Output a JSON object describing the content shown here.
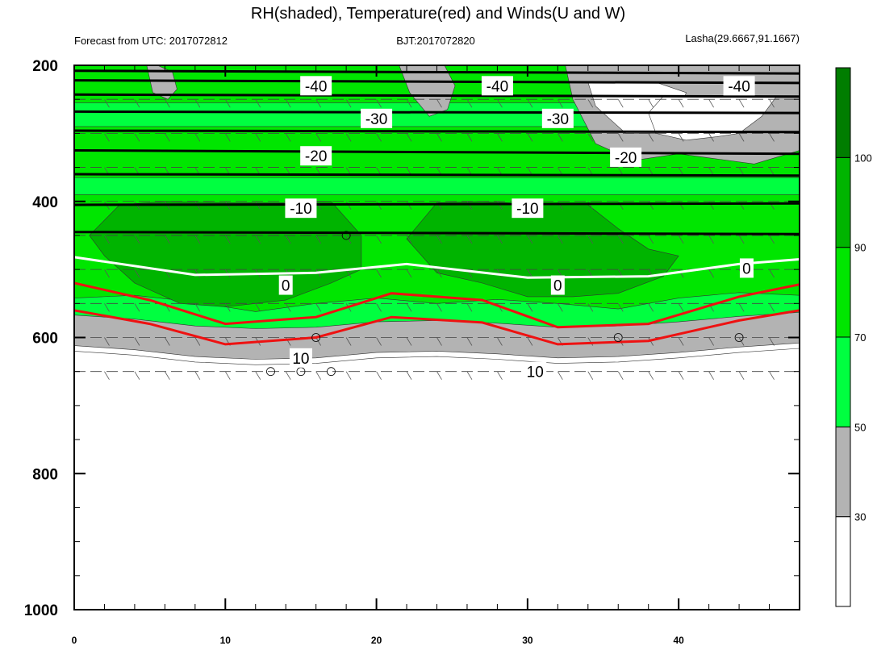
{
  "chart_data": {
    "type": "heatmap",
    "title": "RH(shaded), Temperature(red) and Winds(U and W)",
    "subtitle_left": "Forecast from UTC: 2017072812",
    "subtitle_center": "BJT:2017072820",
    "subtitle_right": "Lasha(29.6667,91.1667)",
    "xlabel": "",
    "ylabel": "",
    "x_range": [
      0,
      48
    ],
    "y_range": [
      200,
      1000
    ],
    "y_reversed": true,
    "x_ticks": [
      "0",
      "10",
      "20",
      "30",
      "40"
    ],
    "x_tick_values": [
      0,
      10,
      20,
      30,
      40
    ],
    "y_ticks": [
      "200",
      "400",
      "600",
      "800",
      "1000"
    ],
    "y_tick_values": [
      200,
      400,
      600,
      800,
      1000
    ],
    "colorbar": {
      "levels": [
        "30",
        "50",
        "70",
        "90",
        "100"
      ],
      "level_values": [
        30,
        50,
        70,
        90,
        100
      ],
      "colors": [
        "#ffffff",
        "#b3b3b3",
        "#00ff40",
        "#00e600",
        "#00b400",
        "#007d00"
      ]
    },
    "rh_layers": [
      {
        "name": "below 30",
        "range": [
          0,
          30
        ],
        "color": "#ffffff"
      },
      {
        "name": "30-50",
        "range": [
          30,
          50
        ],
        "color": "#b3b3b3"
      },
      {
        "name": "50-70",
        "range": [
          50,
          70
        ],
        "color": "#00ff40"
      },
      {
        "name": "70-90",
        "range": [
          70,
          90
        ],
        "color": "#00e600"
      },
      {
        "name": "90-100",
        "range": [
          90,
          100
        ],
        "color": "#00b400"
      }
    ],
    "rh_ground_boundary": {
      "x": [
        0,
        4,
        8,
        12,
        16,
        20,
        24,
        28,
        32,
        36,
        40,
        44,
        48
      ],
      "y": [
        612,
        618,
        628,
        632,
        630,
        622,
        620,
        624,
        630,
        628,
        622,
        614,
        608
      ]
    },
    "rh_moist_regions": [
      {
        "level": "90-100",
        "x": [
          1,
          3,
          6,
          10,
          14,
          17,
          19,
          19,
          17,
          14,
          12,
          10,
          7,
          4,
          2,
          1
        ],
        "y": [
          450,
          405,
          400,
          402,
          402,
          400,
          450,
          500,
          520,
          545,
          550,
          555,
          550,
          520,
          480,
          450
        ]
      },
      {
        "level": "90-100",
        "x": [
          22,
          24,
          27,
          31,
          34,
          36,
          38,
          40,
          39,
          36,
          33,
          30,
          27,
          24,
          22
        ],
        "y": [
          455,
          402,
          400,
          405,
          405,
          440,
          470,
          480,
          510,
          535,
          540,
          540,
          520,
          505,
          455
        ]
      }
    ],
    "rh_dry_regions": [
      {
        "level": "30-50",
        "x": [
          4.8,
          5.5,
          6.5,
          6.8,
          6.2,
          5.2,
          4.8
        ],
        "y": [
          200,
          200,
          210,
          235,
          250,
          240,
          200
        ]
      },
      {
        "level": "30-50",
        "x": [
          21.5,
          24.5,
          25.2,
          24.7,
          23.5,
          22.2,
          21.5
        ],
        "y": [
          200,
          200,
          230,
          265,
          275,
          240,
          200
        ]
      },
      {
        "level": "30-50",
        "x": [
          32.5,
          48,
          48,
          45,
          40,
          37,
          34.5,
          33,
          32.5
        ],
        "y": [
          200,
          200,
          325,
          345,
          330,
          340,
          315,
          250,
          200
        ]
      },
      {
        "level": "below 30",
        "x": [
          34,
          38.5,
          40.5,
          40,
          38.5,
          36.5,
          34.5,
          34
        ],
        "y": [
          225,
          225,
          240,
          270,
          300,
          300,
          260,
          225
        ]
      },
      {
        "level": "below 30",
        "x": [
          39,
          46.5,
          45.5,
          44,
          42.5,
          40.5,
          38.5,
          38,
          39
        ],
        "y": [
          245,
          245,
          275,
          300,
          305,
          310,
          300,
          270,
          245
        ]
      }
    ],
    "temperature_isotherms": [
      {
        "value": -40,
        "label": "-40",
        "x": [
          0,
          48
        ],
        "y": [
          208,
          212
        ]
      },
      {
        "value": -40,
        "label": "",
        "x": [
          0,
          48
        ],
        "y": [
          222,
          226
        ]
      },
      {
        "value": -40,
        "label": "",
        "x": [
          0,
          48
        ],
        "y": [
          243,
          246
        ]
      },
      {
        "value": -30,
        "label": "-30",
        "x": [
          0,
          48
        ],
        "y": [
          268,
          270
        ]
      },
      {
        "value": -30,
        "label": "",
        "x": [
          0,
          48
        ],
        "y": [
          296,
          298
        ]
      },
      {
        "value": -20,
        "label": "-20",
        "x": [
          0,
          48
        ],
        "y": [
          325,
          330
        ]
      },
      {
        "value": -20,
        "label": "",
        "x": [
          0,
          48
        ],
        "y": [
          360,
          362
        ]
      },
      {
        "value": -10,
        "label": "-10",
        "x": [
          0,
          48
        ],
        "y": [
          405,
          403
        ]
      },
      {
        "value": -10,
        "label": "",
        "x": [
          0,
          48
        ],
        "y": [
          445,
          448
        ]
      },
      {
        "value": 0,
        "label": "0",
        "x": [
          0,
          8,
          16,
          22,
          30,
          38,
          44,
          48
        ],
        "y": [
          482,
          508,
          505,
          492,
          512,
          510,
          492,
          485
        ]
      },
      {
        "value": 10,
        "label": "10",
        "x": [
          0,
          5,
          10,
          16,
          21,
          27,
          32,
          38,
          44,
          48
        ],
        "y": [
          520,
          545,
          580,
          570,
          535,
          545,
          585,
          580,
          540,
          522
        ]
      }
    ],
    "contour_labels": [
      {
        "text": "-40",
        "x": 16,
        "y": 230
      },
      {
        "text": "-40",
        "x": 28,
        "y": 230
      },
      {
        "text": "-40",
        "x": 44,
        "y": 230
      },
      {
        "text": "-30",
        "x": 20,
        "y": 278
      },
      {
        "text": "-30",
        "x": 32,
        "y": 278
      },
      {
        "text": "-20",
        "x": 16,
        "y": 333
      },
      {
        "text": "-20",
        "x": 36.5,
        "y": 335
      },
      {
        "text": "-10",
        "x": 15,
        "y": 410
      },
      {
        "text": "-10",
        "x": 30,
        "y": 410
      },
      {
        "text": "0",
        "x": 14,
        "y": 523
      },
      {
        "text": "0",
        "x": 32,
        "y": 523
      },
      {
        "text": "0",
        "x": 44.5,
        "y": 498
      },
      {
        "text": "10",
        "x": 15,
        "y": 630
      },
      {
        "text": "10",
        "x": 30.5,
        "y": 650
      }
    ],
    "wind_barb_levels": [
      250,
      300,
      350,
      400,
      450,
      500,
      550,
      600,
      650
    ],
    "calm_markers": [
      {
        "x": 18,
        "y": 450
      },
      {
        "x": 16,
        "y": 600
      },
      {
        "x": 13,
        "y": 650
      },
      {
        "x": 15,
        "y": 650
      },
      {
        "x": 17,
        "y": 650
      },
      {
        "x": 36,
        "y": 600
      },
      {
        "x": 44,
        "y": 600
      }
    ]
  }
}
